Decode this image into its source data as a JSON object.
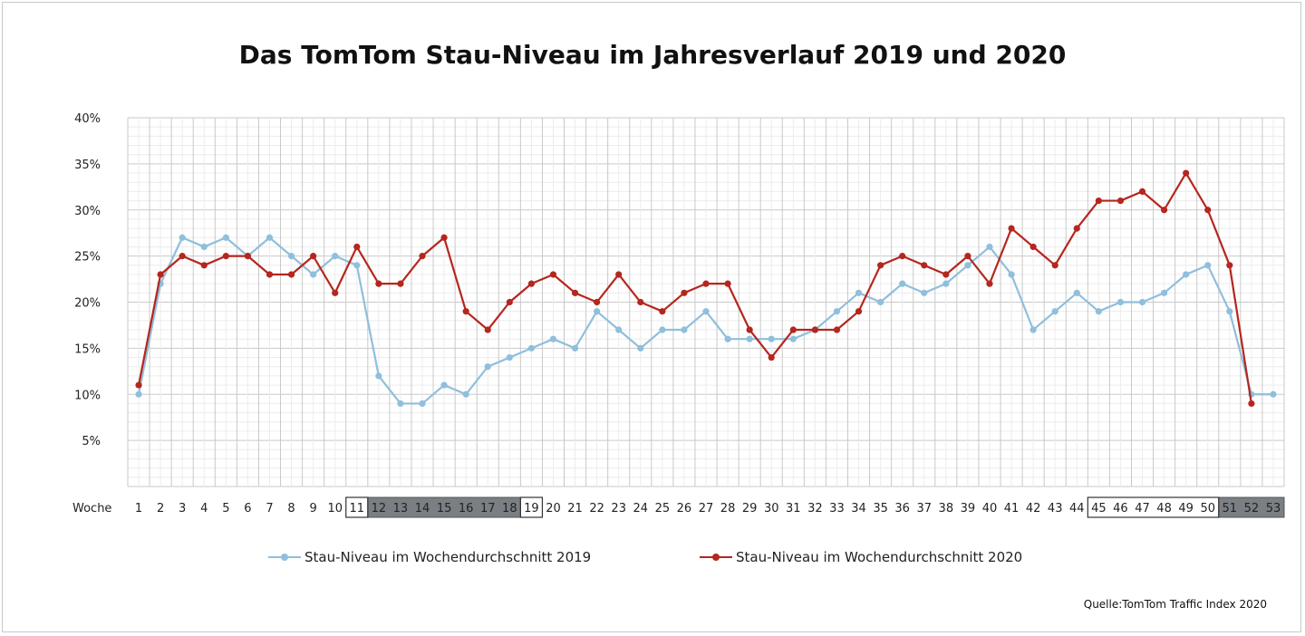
{
  "chart_data": {
    "type": "line",
    "title": "Das TomTom Stau-Niveau im Jahresverlauf 2019 und 2020",
    "xlabel": "Woche",
    "ylabel": "",
    "x": [
      1,
      2,
      3,
      4,
      5,
      6,
      7,
      8,
      9,
      10,
      11,
      12,
      13,
      14,
      15,
      16,
      17,
      18,
      19,
      20,
      21,
      22,
      23,
      24,
      25,
      26,
      27,
      28,
      29,
      30,
      31,
      32,
      33,
      34,
      35,
      36,
      37,
      38,
      39,
      40,
      41,
      42,
      43,
      44,
      45,
      46,
      47,
      48,
      49,
      50,
      51,
      52,
      53
    ],
    "ylim": [
      0,
      40
    ],
    "yticks": [
      5,
      10,
      15,
      20,
      25,
      30,
      35,
      40
    ],
    "ytick_labels": [
      "5%",
      "10%",
      "15%",
      "20%",
      "25%",
      "30%",
      "35%",
      "40%"
    ],
    "grid": true,
    "legend_position": "bottom",
    "highlighted_weeks": {
      "outlined": [
        11,
        19,
        45,
        46,
        47,
        48,
        49,
        50
      ],
      "shaded": [
        12,
        13,
        14,
        15,
        16,
        17,
        18,
        51,
        52,
        53
      ]
    },
    "series": [
      {
        "name": "Stau-Niveau im Wochendurchschnitt 2019",
        "color": "#8fbfdc",
        "values": [
          10,
          22,
          27,
          26,
          27,
          25,
          27,
          25,
          23,
          25,
          24,
          12,
          9,
          9,
          11,
          10,
          13,
          14,
          15,
          16,
          15,
          19,
          17,
          15,
          17,
          17,
          19,
          16,
          16,
          16,
          16,
          17,
          19,
          21,
          20,
          22,
          21,
          22,
          24,
          26,
          23,
          17,
          19,
          21,
          19,
          20,
          20,
          21,
          23,
          24,
          19,
          10,
          10
        ]
      },
      {
        "name": "Stau-Niveau im Wochendurchschnitt 2020",
        "color": "#b5261e",
        "values": [
          11,
          23,
          25,
          24,
          25,
          25,
          23,
          23,
          25,
          21,
          26,
          22,
          22,
          25,
          27,
          19,
          17,
          20,
          22,
          23,
          21,
          20,
          23,
          20,
          19,
          21,
          22,
          22,
          17,
          14,
          17,
          17,
          17,
          19,
          24,
          25,
          24,
          23,
          25,
          22,
          28,
          26,
          24,
          28,
          31,
          31,
          32,
          30,
          34,
          30,
          24,
          9,
          null
        ]
      }
    ],
    "source": "Quelle:TomTom Traffic Index 2020"
  }
}
